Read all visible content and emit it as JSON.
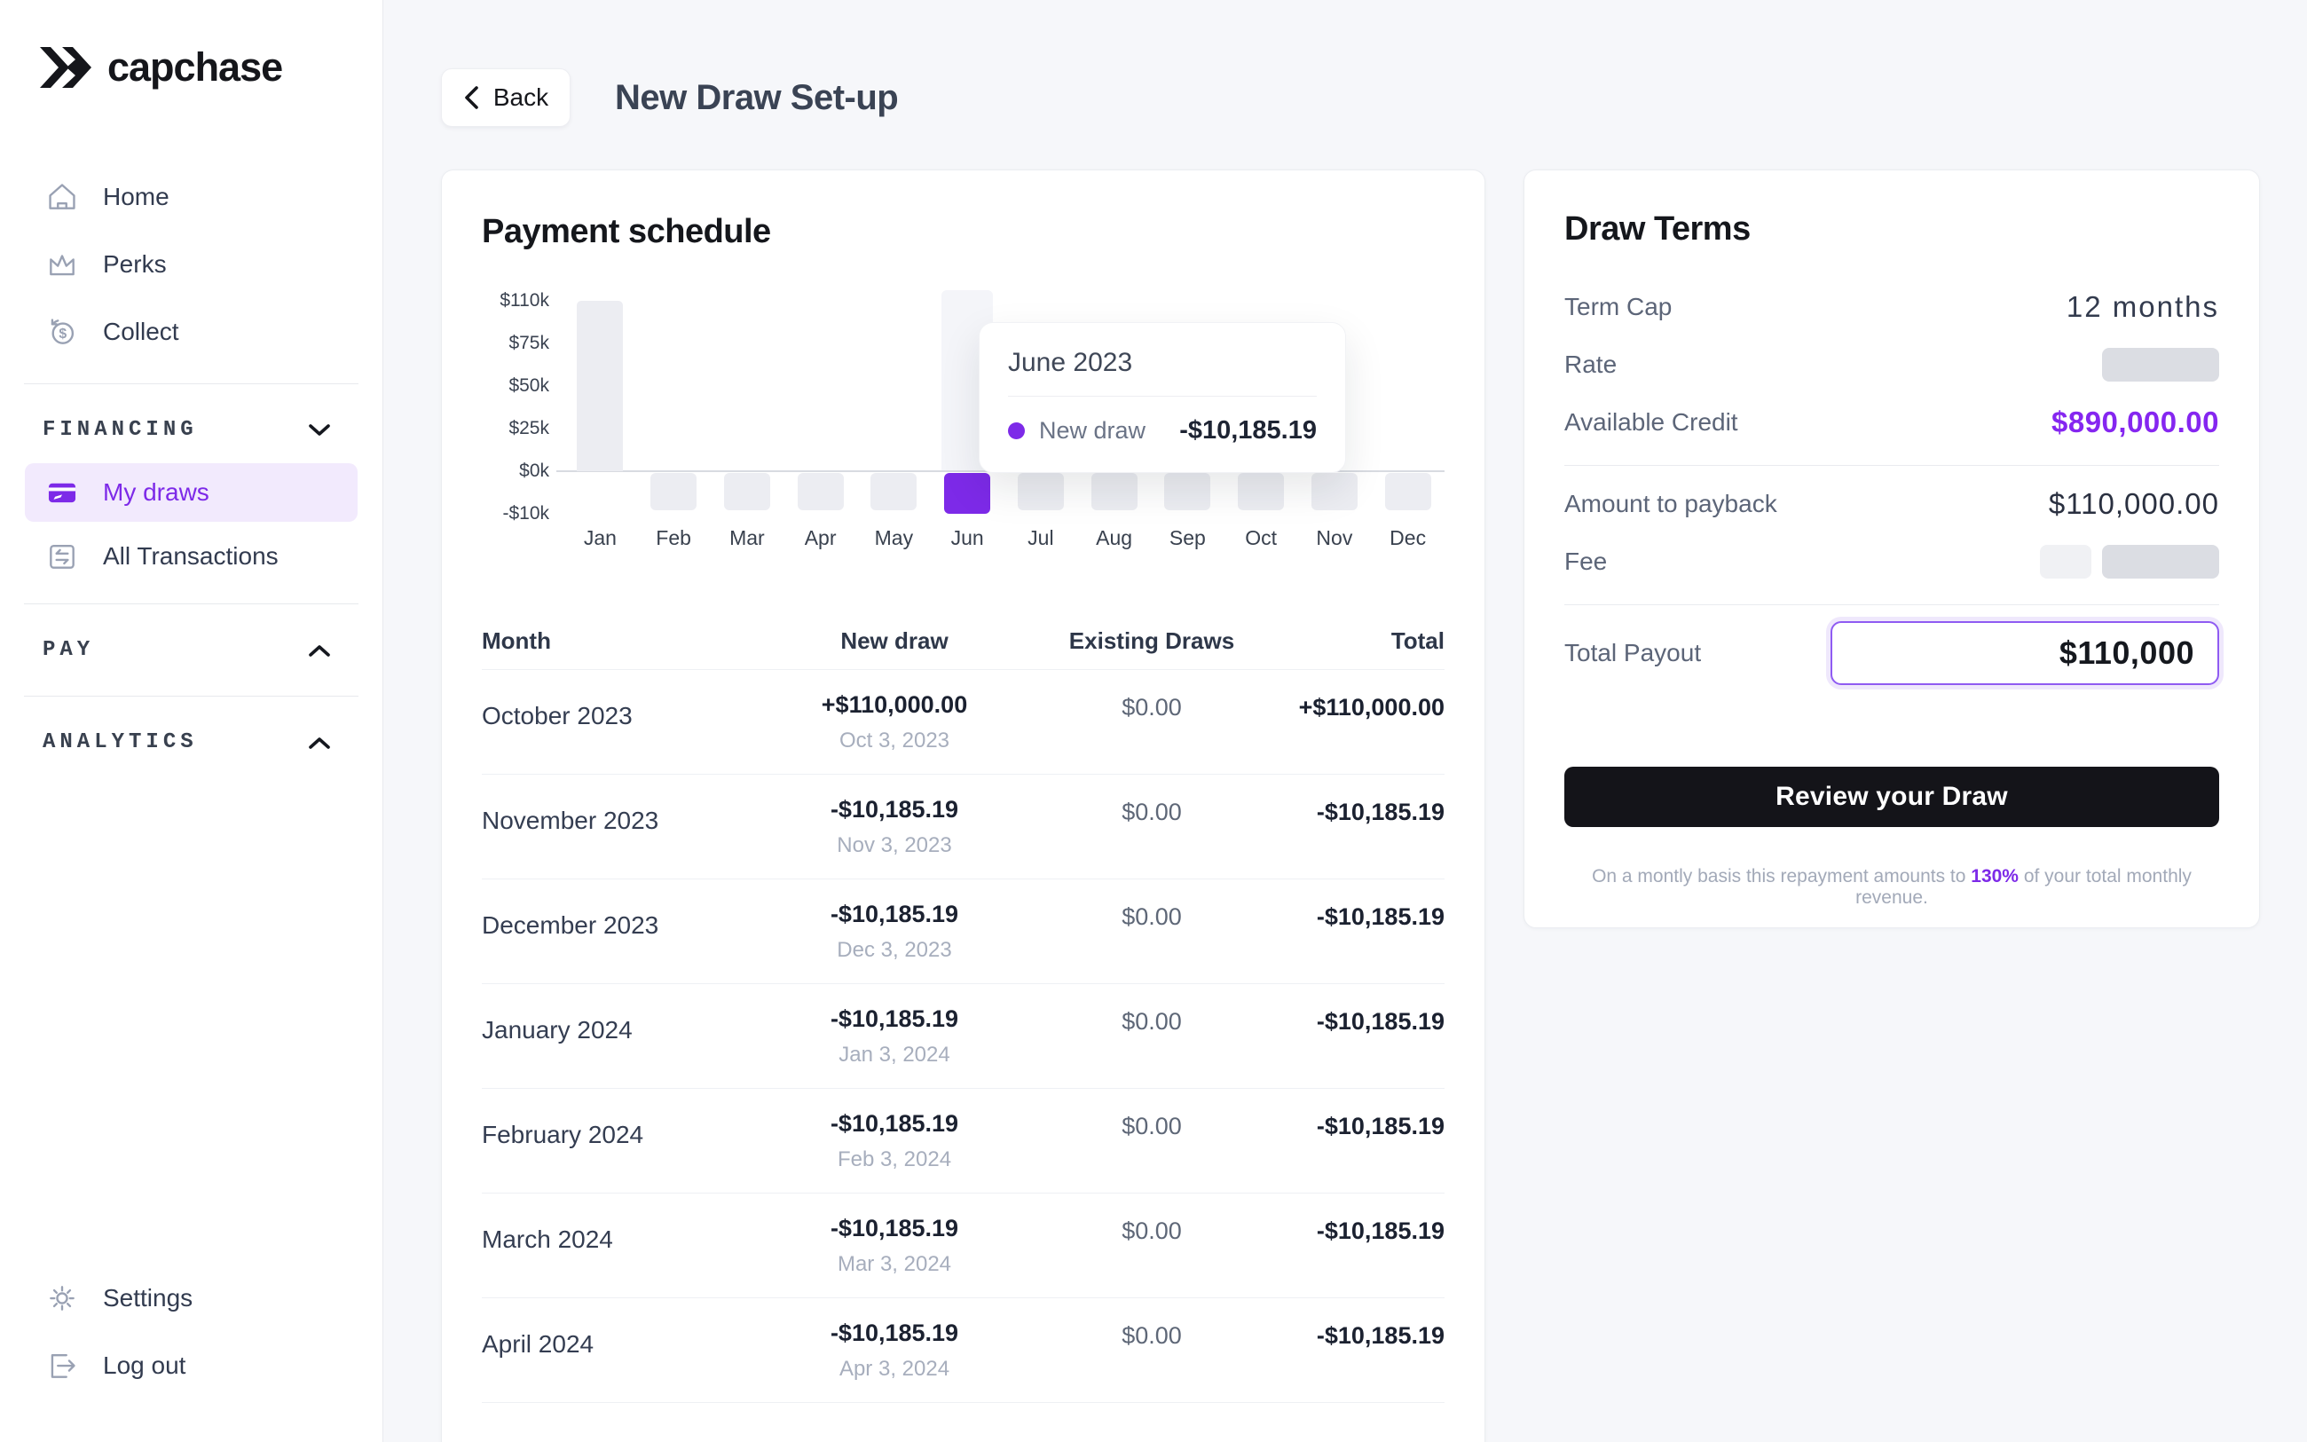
{
  "colors": {
    "accent": "#7D2AE8",
    "accent_light_bg": "#F2EAFD",
    "available_credit": "#8526F0",
    "bar_gray": "#ECEDF2",
    "button_dark": "#141419",
    "page_bg": "#F6F7FA"
  },
  "sidebar": {
    "logo_text": "capchase",
    "nav": [
      {
        "icon": "home-icon",
        "label": "Home"
      },
      {
        "icon": "perks-icon",
        "label": "Perks"
      },
      {
        "icon": "collect-icon",
        "label": "Collect"
      }
    ],
    "sections": [
      {
        "label": "FINANCING",
        "chevron": "down",
        "items": [
          {
            "icon": "card-icon",
            "label": "My draws",
            "active": true
          },
          {
            "icon": "transactions-icon",
            "label": "All Transactions",
            "active": false
          }
        ]
      },
      {
        "label": "PAY",
        "chevron": "up",
        "items": []
      },
      {
        "label": "ANALYTICS",
        "chevron": "up",
        "items": []
      }
    ],
    "footer": [
      {
        "icon": "gear-icon",
        "label": "Settings"
      },
      {
        "icon": "logout-icon",
        "label": "Log out"
      }
    ]
  },
  "header": {
    "back_label": "Back",
    "title": "New Draw Set-up"
  },
  "payment_schedule": {
    "title": "Payment schedule",
    "table": {
      "columns": [
        "Month",
        "New draw",
        "Existing Draws",
        "Total"
      ],
      "rows": [
        {
          "month": "October 2023",
          "new_draw": "+$110,000.00",
          "date": "Oct 3, 2023",
          "existing": "$0.00",
          "total": "+$110,000.00"
        },
        {
          "month": "November 2023",
          "new_draw": "-$10,185.19",
          "date": "Nov 3, 2023",
          "existing": "$0.00",
          "total": "-$10,185.19"
        },
        {
          "month": "December 2023",
          "new_draw": "-$10,185.19",
          "date": "Dec 3, 2023",
          "existing": "$0.00",
          "total": "-$10,185.19"
        },
        {
          "month": "January 2024",
          "new_draw": "-$10,185.19",
          "date": "Jan 3, 2024",
          "existing": "$0.00",
          "total": "-$10,185.19"
        },
        {
          "month": "February 2024",
          "new_draw": "-$10,185.19",
          "date": "Feb 3, 2024",
          "existing": "$0.00",
          "total": "-$10,185.19"
        },
        {
          "month": "March 2024",
          "new_draw": "-$10,185.19",
          "date": "Mar 3, 2024",
          "existing": "$0.00",
          "total": "-$10,185.19"
        },
        {
          "month": "April 2024",
          "new_draw": "-$10,185.19",
          "date": "Apr 3, 2024",
          "existing": "$0.00",
          "total": "-$10,185.19"
        }
      ]
    }
  },
  "chart_data": {
    "type": "bar",
    "title": "Payment schedule",
    "categories": [
      "Jan",
      "Feb",
      "Mar",
      "Apr",
      "May",
      "Jun",
      "Jul",
      "Aug",
      "Sep",
      "Oct",
      "Nov",
      "Dec"
    ],
    "series": [
      {
        "name": "New draw",
        "values": [
          110000,
          -10185.19,
          -10185.19,
          -10185.19,
          -10185.19,
          -10185.19,
          -10185.19,
          -10185.19,
          -10185.19,
          -10185.19,
          -10185.19,
          -10185.19
        ]
      }
    ],
    "y_ticks": [
      "$110k",
      "$75k",
      "$50k",
      "$25k",
      "$0k",
      "-$10k"
    ],
    "ylim": [
      -10000,
      110000
    ],
    "grid": false,
    "legend": false,
    "highlight_index": 5,
    "bar_color": "#ECEDF2",
    "highlight_color": "#7D2AE8",
    "tooltip": {
      "title": "June 2023",
      "series": "New draw",
      "value": "-$10,185.19"
    }
  },
  "draw_terms": {
    "title": "Draw Terms",
    "term_cap_label": "Term Cap",
    "term_cap_value": "12 months",
    "rate_label": "Rate",
    "available_credit_label": "Available Credit",
    "available_credit_value": "$890,000.00",
    "amount_payback_label": "Amount to payback",
    "amount_payback_value": "$110,000.00",
    "fee_label": "Fee",
    "total_payout_label": "Total Payout",
    "total_payout_value": "$110,000",
    "review_button_label": "Review your Draw",
    "footnote_prefix": "On a montly basis this repayment amounts to ",
    "footnote_highlight": "130%",
    "footnote_suffix": " of your total monthly revenue."
  }
}
